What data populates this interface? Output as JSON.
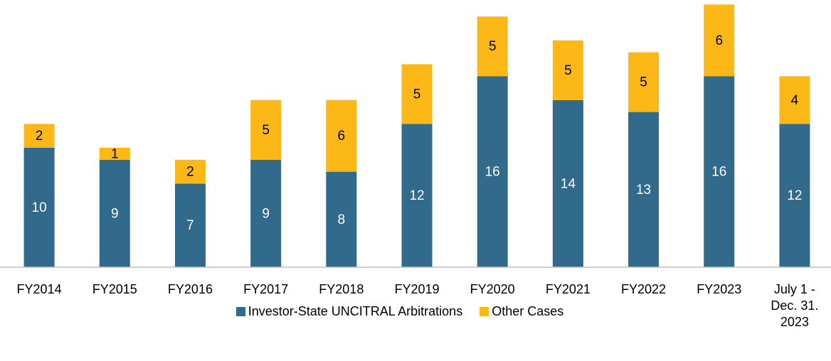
{
  "chart_data": {
    "type": "stacked_bar",
    "categories": [
      "FY2014",
      "FY2015",
      "FY2016",
      "FY2017",
      "FY2018",
      "FY2019",
      "FY2020",
      "FY2021",
      "FY2022",
      "FY2023",
      "July 1 - Dec. 31. 2023"
    ],
    "series": [
      {
        "name": "Investor-State UNCITRAL Arbitrations",
        "color": "#316a8b",
        "values": [
          10,
          9,
          7,
          9,
          8,
          12,
          16,
          14,
          13,
          16,
          12
        ]
      },
      {
        "name": "Other Cases",
        "color": "#fbb817",
        "values": [
          2,
          1,
          2,
          5,
          6,
          5,
          5,
          5,
          5,
          6,
          4
        ]
      }
    ],
    "ylim": [
      0,
      22
    ],
    "legend": "bottom"
  }
}
